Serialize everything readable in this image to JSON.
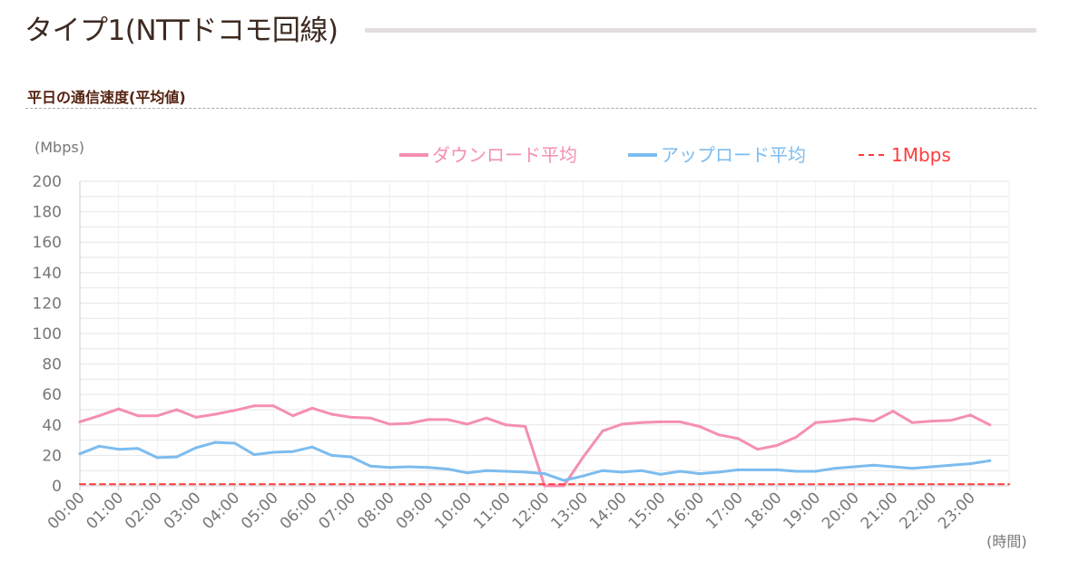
{
  "page": {
    "title": "タイプ1(NTTドコモ回線)",
    "section_title": "平日の通信速度(平均値)"
  },
  "colors": {
    "download": "#f48fb1",
    "upload": "#7cbcef",
    "threshold": "#ff3b3b",
    "grid": "#e6e6e6",
    "axis_text": "#777777",
    "title_text": "#3d2a20",
    "section_text": "#552210"
  },
  "chart_data": {
    "type": "line",
    "ylabel": "(Mbps)",
    "xlabel": "(時間)",
    "ylim": [
      0,
      200
    ],
    "y_ticks": [
      "0",
      "20",
      "40",
      "60",
      "80",
      "100",
      "120",
      "140",
      "160",
      "180",
      "200"
    ],
    "x_ticks": [
      "00:00",
      "01:00",
      "02:00",
      "03:00",
      "04:00",
      "05:00",
      "06:00",
      "07:00",
      "08:00",
      "09:00",
      "10:00",
      "11:00",
      "12:00",
      "13:00",
      "14:00",
      "15:00",
      "16:00",
      "17:00",
      "18:00",
      "19:00",
      "20:00",
      "21:00",
      "22:00",
      "23:00"
    ],
    "x_half_hours": [
      0,
      0.5,
      1,
      1.5,
      2,
      2.5,
      3,
      3.5,
      4,
      4.5,
      5,
      5.5,
      6,
      6.5,
      7,
      7.5,
      8,
      8.5,
      9,
      9.5,
      10,
      10.5,
      11,
      11.5,
      12,
      12.5,
      13,
      13.5,
      14,
      14.5,
      15,
      15.5,
      16,
      16.5,
      17,
      17.5,
      18,
      18.5,
      19,
      19.5,
      20,
      20.5,
      21,
      21.5,
      22,
      22.5,
      23,
      23.5
    ],
    "legend_position": "top-right",
    "grid": true,
    "series": [
      {
        "name": "ダウンロード平均",
        "style": "solid",
        "values": [
          42,
          46,
          50.5,
          46,
          46,
          50,
          45,
          47,
          49.5,
          52.5,
          52.5,
          46,
          51,
          47,
          45,
          44.5,
          40.5,
          41,
          43.5,
          43.5,
          40.5,
          44.5,
          40,
          39,
          0,
          0,
          19,
          36,
          40.5,
          41.5,
          42,
          42,
          39,
          33.5,
          31,
          24,
          26.5,
          32,
          41.5,
          42.5,
          44,
          42.5,
          49,
          41.5,
          42.5,
          43,
          46.5,
          40
        ]
      },
      {
        "name": "アップロード平均",
        "style": "solid",
        "values": [
          21,
          26,
          24,
          24.5,
          18.5,
          19,
          25,
          28.5,
          28,
          20.5,
          22,
          22.5,
          25.5,
          20,
          19,
          13,
          12,
          12.5,
          12,
          11,
          8.5,
          10,
          9.5,
          9,
          8,
          3.5,
          6.5,
          10,
          9,
          10,
          7.5,
          9.5,
          8,
          9,
          10.5,
          10.5,
          10.5,
          9.5,
          9.5,
          11.5,
          12.5,
          13.5,
          12.5,
          11.5,
          12.5,
          13.5,
          14.5,
          16.5
        ]
      },
      {
        "name": "1Mbps",
        "style": "dashed",
        "values": [
          1,
          1
        ]
      }
    ]
  }
}
